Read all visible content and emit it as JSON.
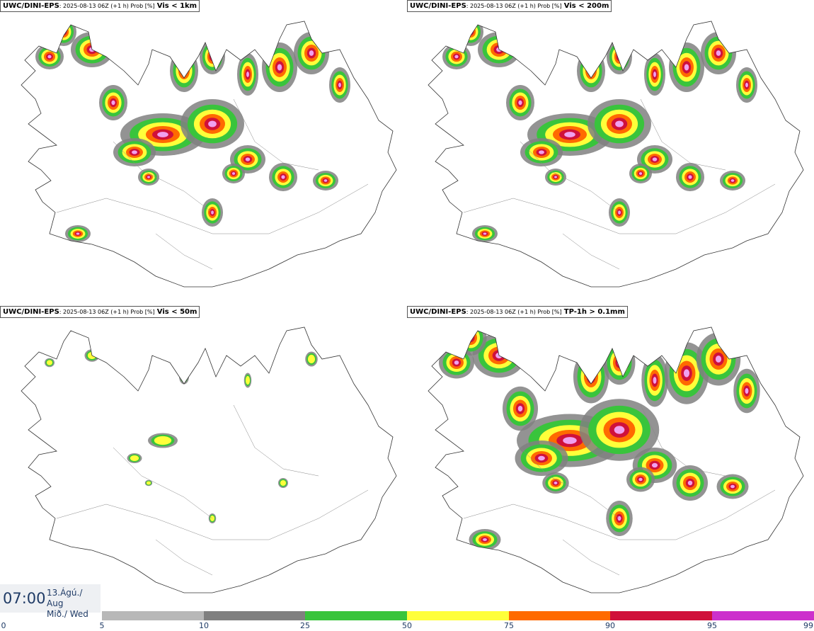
{
  "panels": [
    {
      "product": "UWC/DINI-EPS",
      "meta": ": 2025-08-13 06Z (+1 h) Prob [%]",
      "threshold": "Vis < 1km",
      "level": 4
    },
    {
      "product": "UWC/DINI-EPS",
      "meta": ": 2025-08-13 06Z (+1 h) Prob [%]",
      "threshold": "Vis < 200m",
      "level": 4
    },
    {
      "product": "UWC/DINI-EPS",
      "meta": ": 2025-08-13 06Z (+1 h) Prob [%]",
      "threshold": "Vis < 50m",
      "level": 1
    },
    {
      "product": "UWC/DINI-EPS",
      "meta": ": 2025-08-13 06Z (+1 h) Prob [%]",
      "threshold": "TP-1h > 0.1mm",
      "level": 5
    }
  ],
  "valid_time": {
    "time": "07:00",
    "date_line1": "13.Ágú./ Aug",
    "date_line2": "Mið./ Wed"
  },
  "legend": {
    "ticks": [
      "0",
      "5",
      "10",
      "25",
      "50",
      "75",
      "90",
      "95",
      "99"
    ],
    "colors": [
      "#ffffff",
      "#b8b8b8",
      "#808080",
      "#39c43c",
      "#ffff3a",
      "#ff6a00",
      "#d0103a",
      "#cc30cc",
      "#f0a0f0"
    ],
    "outline_color": "#333333"
  }
}
